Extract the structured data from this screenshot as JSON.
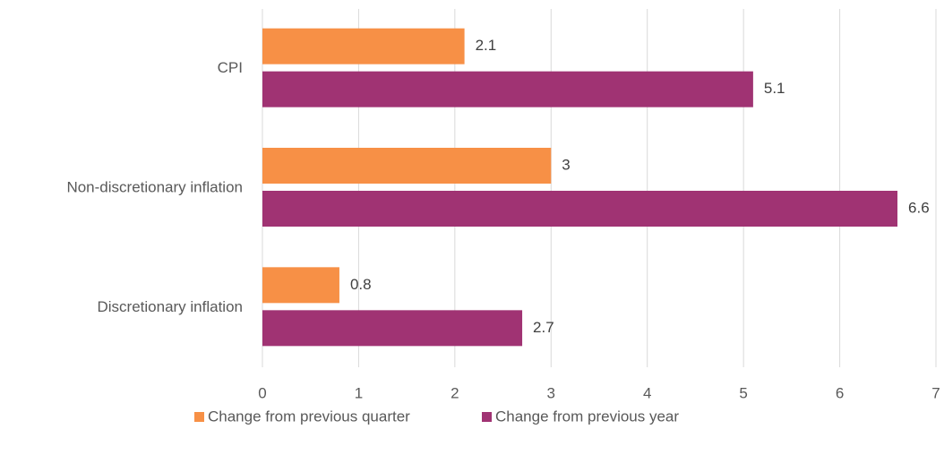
{
  "chart_data": {
    "type": "hbar",
    "categories": [
      "CPI",
      "Non-discretionary inflation",
      "Discretionary inflation"
    ],
    "series": [
      {
        "name": "Change from previous quarter",
        "color": "#f79046",
        "values": [
          2.1,
          3,
          0.8
        ]
      },
      {
        "name": "Change from previous year",
        "color": "#a03373",
        "values": [
          5.1,
          6.6,
          2.7
        ]
      }
    ],
    "xlim": [
      0,
      7
    ],
    "xticks": [
      0,
      1,
      2,
      3,
      4,
      5,
      6,
      7
    ],
    "grid": true,
    "legend": "bottom"
  }
}
